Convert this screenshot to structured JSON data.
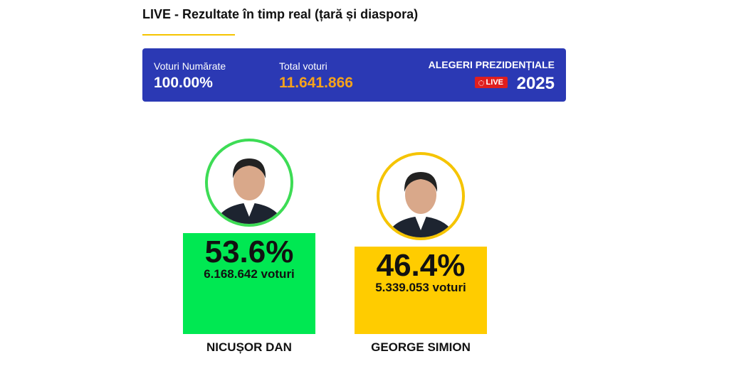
{
  "header": {
    "title": "LIVE - Rezultate în timp real (țară și diaspora)"
  },
  "summary": {
    "counted_label": "Voturi Numărate",
    "counted_value": "100.00%",
    "total_label": "Total voturi",
    "total_value": "11.641.866",
    "election_title": "ALEGERI PREZIDENȚIALE",
    "live_badge": "LIVE",
    "year": "2025"
  },
  "candidates": [
    {
      "name": "NICUȘOR DAN",
      "percent": {
        "value": 53.6,
        "label": "53.6%"
      },
      "votes": "6.168.642 voturi",
      "color": "#00e852",
      "ring": "#3ddc55"
    },
    {
      "name": "GEORGE SIMION",
      "percent": {
        "value": 46.4,
        "label": "46.4%"
      },
      "votes": "5.339.053 voturi",
      "color": "#ffcc00",
      "ring": "#f5c400"
    }
  ]
}
